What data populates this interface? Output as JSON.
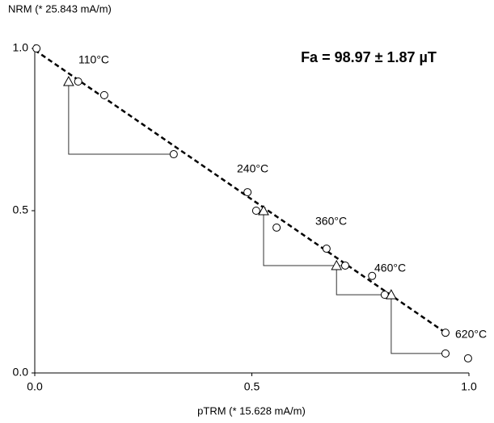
{
  "chart_data": {
    "type": "scatter",
    "y_label": "NRM (* 25.843 mA/m)",
    "x_label": "pTRM (* 15.628 mA/m)",
    "annotation": "Fa = 98.97 ± 1.87 µT",
    "xlim": [
      0,
      1
    ],
    "ylim": [
      0,
      1
    ],
    "xticks": [
      {
        "value": 0,
        "label": "0.0"
      },
      0.5,
      {
        "value": 1,
        "label": "1.0"
      }
    ],
    "yticks": [
      {
        "value": 0,
        "label": "0.0"
      },
      0.5,
      {
        "value": 1,
        "label": "1.0"
      }
    ],
    "points": {
      "x": [
        0.004,
        0.1,
        0.16,
        0.32,
        0.49,
        0.51,
        0.557,
        0.672,
        0.715,
        0.777,
        0.806,
        0.946,
        0.946,
        0.998
      ],
      "y": [
        1.0,
        0.898,
        0.856,
        0.674,
        0.557,
        0.5,
        0.448,
        0.383,
        0.331,
        0.299,
        0.241,
        0.124,
        0.06,
        0.045
      ]
    },
    "checks": {
      "x": [
        0.078,
        0.527,
        0.695,
        0.821
      ],
      "y": [
        0.898,
        0.5,
        0.331,
        0.241
      ]
    },
    "fit": {
      "x": [
        0,
        0.946
      ],
      "y": [
        0.995,
        0.124
      ]
    },
    "temperature_labels": [
      "110°C",
      "240°C",
      "360°C",
      "460°C",
      "620°C"
    ]
  }
}
